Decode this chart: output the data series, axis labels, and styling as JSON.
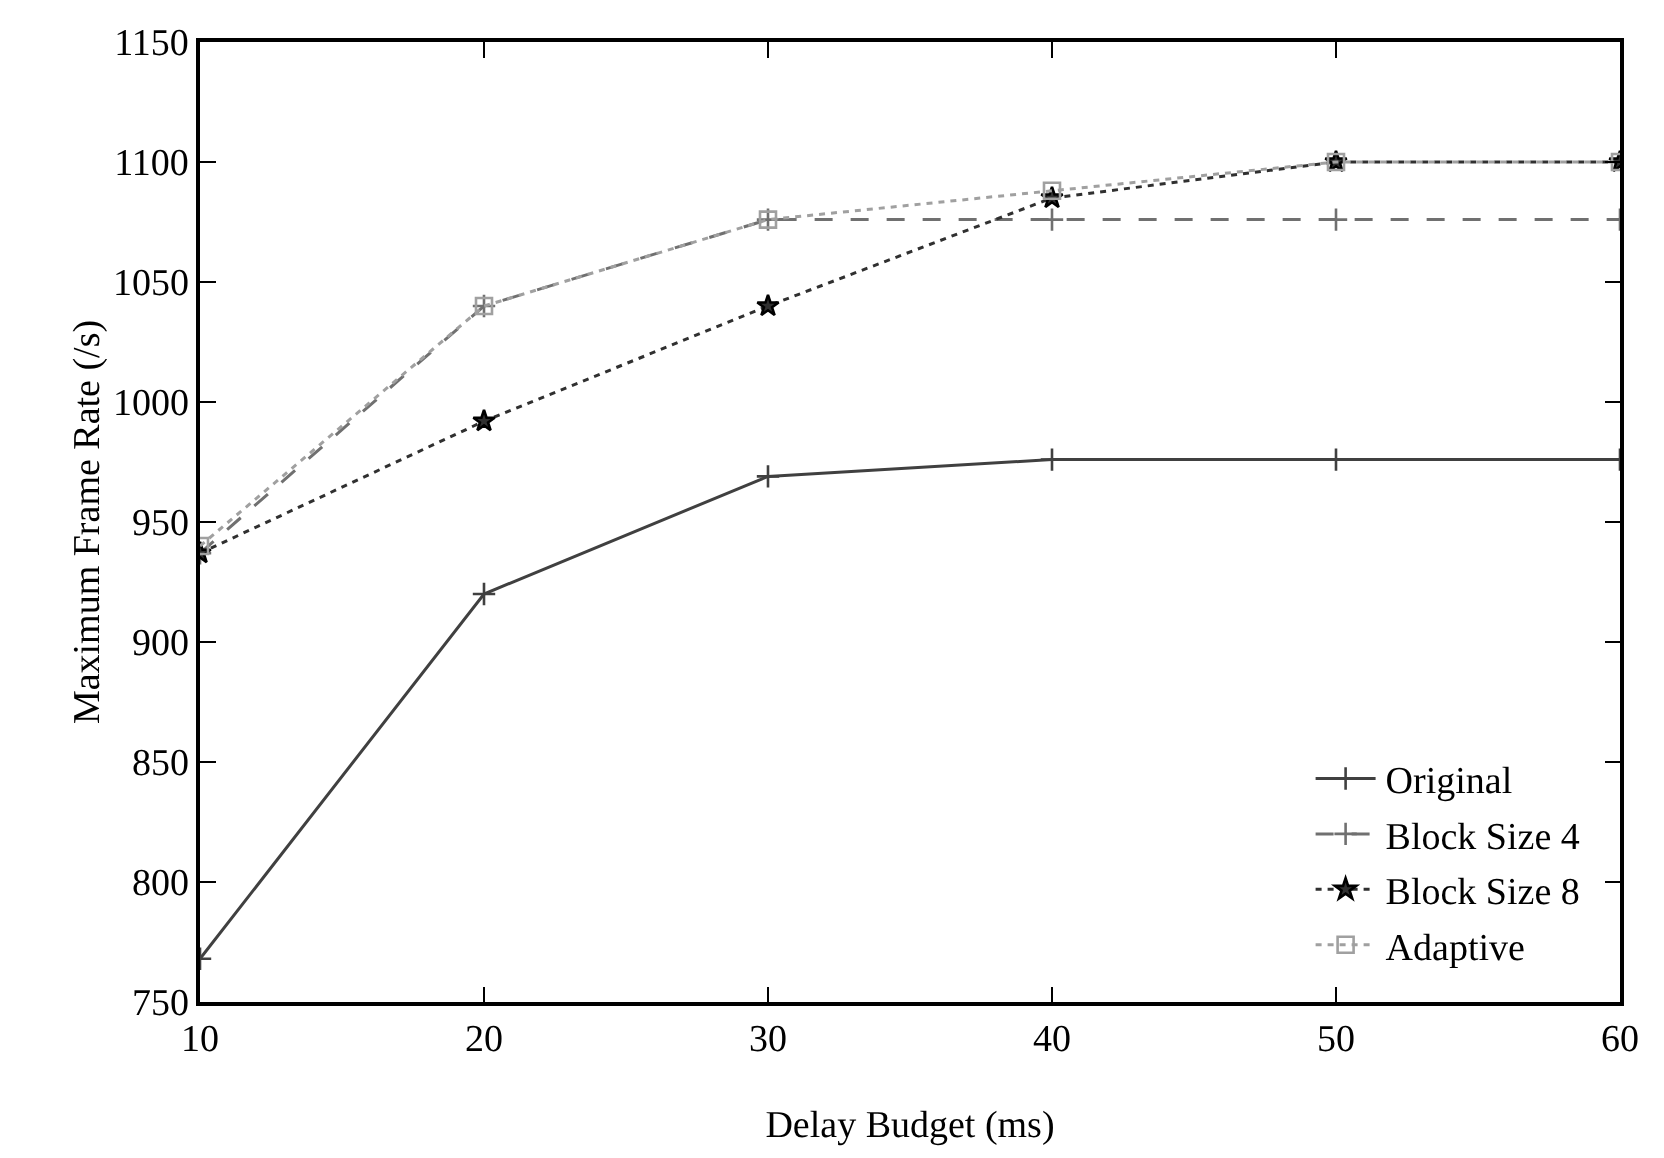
{
  "chart_data": {
    "type": "line",
    "xlabel": "Delay Budget (ms)",
    "ylabel": "Maximum Frame Rate (/s)",
    "x": [
      10,
      20,
      30,
      40,
      50,
      60
    ],
    "series": [
      {
        "name": "Original",
        "color": "#404040",
        "marker": "cross",
        "line_style": "solid",
        "values": [
          768,
          920,
          969,
          976,
          976,
          976
        ]
      },
      {
        "name": "Block Size 4",
        "color": "#707070",
        "marker": "cross",
        "line_style": "dashed",
        "values": [
          937,
          1040,
          1076,
          1076,
          1076,
          1076
        ]
      },
      {
        "name": "Block Size 8",
        "color": "#303030",
        "marker": "star",
        "line_style": "dotted",
        "values": [
          937,
          992,
          1040,
          1085,
          1100,
          1100
        ]
      },
      {
        "name": "Adaptive",
        "color": "#a0a0a0",
        "marker": "square",
        "line_style": "dotted",
        "values": [
          940,
          1040,
          1076,
          1088,
          1100,
          1100
        ]
      }
    ],
    "xlim": [
      10,
      60
    ],
    "xticks": [
      10,
      20,
      30,
      40,
      50,
      60
    ],
    "ylim": [
      750,
      1150
    ],
    "yticks": [
      750,
      800,
      850,
      900,
      950,
      1000,
      1050,
      1100,
      1150
    ],
    "grid": false,
    "legend": "bottom right"
  }
}
